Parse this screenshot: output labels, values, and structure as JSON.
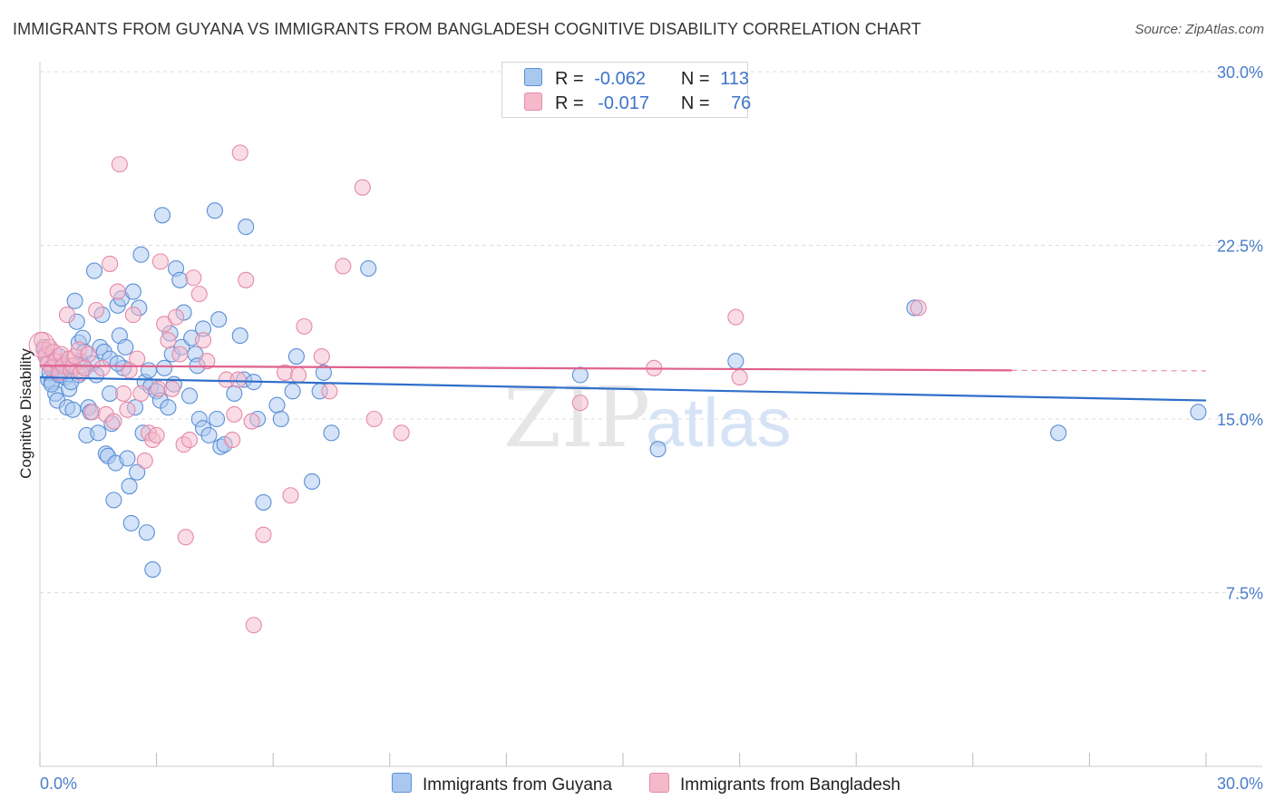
{
  "header": {
    "title": "IMMIGRANTS FROM GUYANA VS IMMIGRANTS FROM BANGLADESH COGNITIVE DISABILITY CORRELATION CHART",
    "source": "Source: ZipAtlas.com"
  },
  "legend": {
    "rows": [
      {
        "r_label": "R =",
        "r_value": "-0.062",
        "n_label": "N =",
        "n_value": "113"
      },
      {
        "r_label": "R =",
        "r_value": "-0.017",
        "n_label": "N =",
        "n_value": "76"
      }
    ]
  },
  "watermark": {
    "zip": "ZIP",
    "atlas": "atlas"
  },
  "colors": {
    "guyana_fill": "#a9c8f0",
    "guyana_stroke": "#5b8fd6",
    "guyana_line": "#2f6fcb",
    "bangladesh_fill": "#f6b9cc",
    "bangladesh_stroke": "#e48aa8",
    "bangladesh_line": "#e0608c",
    "tick_text": "#4a7cc9",
    "grid": "#dddddd"
  },
  "chart_data": {
    "type": "scatter",
    "title": "IMMIGRANTS FROM GUYANA VS IMMIGRANTS FROM BANGLADESH COGNITIVE DISABILITY CORRELATION CHART",
    "xlabel": "",
    "ylabel": "Cognitive Disability",
    "xlim": [
      0,
      30
    ],
    "ylim": [
      0,
      30
    ],
    "x_ticks": [
      "0.0%",
      "30.0%"
    ],
    "y_ticks": [
      {
        "value": 30,
        "label": "30.0%"
      },
      {
        "value": 22.5,
        "label": "22.5%"
      },
      {
        "value": 15,
        "label": "15.0%"
      },
      {
        "value": 7.5,
        "label": "7.5%"
      }
    ],
    "grid": "horizontal dashed",
    "legend_position": "top-center and bottom",
    "series": [
      {
        "name": "Immigrants from Guyana",
        "color": "#a9c8f0",
        "trend": {
          "x": [
            0,
            30
          ],
          "y": [
            16.8,
            15.8
          ]
        },
        "points": [
          [
            0.1,
            18.1
          ],
          [
            0.15,
            17.8
          ],
          [
            0.2,
            17.4
          ],
          [
            0.22,
            16.7
          ],
          [
            0.25,
            17.0
          ],
          [
            0.3,
            16.6
          ],
          [
            0.35,
            17.3
          ],
          [
            0.4,
            16.1
          ],
          [
            0.45,
            15.8
          ],
          [
            0.5,
            17.7
          ],
          [
            0.55,
            16.9
          ],
          [
            0.6,
            17.2
          ],
          [
            0.65,
            16.8
          ],
          [
            0.7,
            15.5
          ],
          [
            0.75,
            16.3
          ],
          [
            0.8,
            17.1
          ],
          [
            0.85,
            15.4
          ],
          [
            0.9,
            20.1
          ],
          [
            0.95,
            19.2
          ],
          [
            1.0,
            18.3
          ],
          [
            1.05,
            17.5
          ],
          [
            1.1,
            18.5
          ],
          [
            1.15,
            17.9
          ],
          [
            1.2,
            14.3
          ],
          [
            1.25,
            15.5
          ],
          [
            1.3,
            15.3
          ],
          [
            1.35,
            17.4
          ],
          [
            1.4,
            21.4
          ],
          [
            1.45,
            16.9
          ],
          [
            1.5,
            14.4
          ],
          [
            1.55,
            18.1
          ],
          [
            1.6,
            19.5
          ],
          [
            1.65,
            17.9
          ],
          [
            1.7,
            13.5
          ],
          [
            1.75,
            13.4
          ],
          [
            1.8,
            17.6
          ],
          [
            1.85,
            14.8
          ],
          [
            1.9,
            11.5
          ],
          [
            1.95,
            13.1
          ],
          [
            2.0,
            19.9
          ],
          [
            2.05,
            18.6
          ],
          [
            2.1,
            20.2
          ],
          [
            2.15,
            17.2
          ],
          [
            2.2,
            18.1
          ],
          [
            2.25,
            13.3
          ],
          [
            2.3,
            12.1
          ],
          [
            2.35,
            10.5
          ],
          [
            2.4,
            20.5
          ],
          [
            2.45,
            15.5
          ],
          [
            2.5,
            12.7
          ],
          [
            2.55,
            19.8
          ],
          [
            2.6,
            22.1
          ],
          [
            2.65,
            14.4
          ],
          [
            2.7,
            16.6
          ],
          [
            2.75,
            10.1
          ],
          [
            2.8,
            17.1
          ],
          [
            2.85,
            16.4
          ],
          [
            2.9,
            8.5
          ],
          [
            3.0,
            16.2
          ],
          [
            3.1,
            15.8
          ],
          [
            3.15,
            23.8
          ],
          [
            3.2,
            17.2
          ],
          [
            3.3,
            15.5
          ],
          [
            3.35,
            18.7
          ],
          [
            3.4,
            17.8
          ],
          [
            3.45,
            16.5
          ],
          [
            3.5,
            21.5
          ],
          [
            3.6,
            21.0
          ],
          [
            3.65,
            18.1
          ],
          [
            3.7,
            19.6
          ],
          [
            3.85,
            16.0
          ],
          [
            3.9,
            18.5
          ],
          [
            4.0,
            17.8
          ],
          [
            4.05,
            17.3
          ],
          [
            4.1,
            15.0
          ],
          [
            4.2,
            14.6
          ],
          [
            4.35,
            14.3
          ],
          [
            4.5,
            24.0
          ],
          [
            4.55,
            15.0
          ],
          [
            4.6,
            19.3
          ],
          [
            4.65,
            13.8
          ],
          [
            4.75,
            13.9
          ],
          [
            5.0,
            16.1
          ],
          [
            5.15,
            18.6
          ],
          [
            5.25,
            16.7
          ],
          [
            5.3,
            23.3
          ],
          [
            5.5,
            16.6
          ],
          [
            5.6,
            15.0
          ],
          [
            5.75,
            11.4
          ],
          [
            6.1,
            15.6
          ],
          [
            6.2,
            15.0
          ],
          [
            6.5,
            16.2
          ],
          [
            6.6,
            17.7
          ],
          [
            7.0,
            12.3
          ],
          [
            7.2,
            16.2
          ],
          [
            7.3,
            17.0
          ],
          [
            7.5,
            14.4
          ],
          [
            8.45,
            21.5
          ],
          [
            13.9,
            16.9
          ],
          [
            15.9,
            13.7
          ],
          [
            17.9,
            17.5
          ],
          [
            22.5,
            19.8
          ],
          [
            26.2,
            14.4
          ],
          [
            29.8,
            15.3
          ],
          [
            0.3,
            16.5
          ],
          [
            0.5,
            16.9
          ],
          [
            0.6,
            17.4
          ],
          [
            0.8,
            16.6
          ],
          [
            1.0,
            16.9
          ],
          [
            1.1,
            17.3
          ],
          [
            2.0,
            17.4
          ],
          [
            1.8,
            16.1
          ],
          [
            4.2,
            18.9
          ]
        ]
      },
      {
        "name": "Immigrants from Bangladesh",
        "color": "#f6b9cc",
        "trend": {
          "x": [
            0,
            25
          ],
          "y": [
            17.3,
            17.1
          ]
        },
        "points": [
          [
            0.05,
            18.4
          ],
          [
            0.1,
            18.0
          ],
          [
            0.15,
            17.7
          ],
          [
            0.2,
            17.4
          ],
          [
            0.25,
            18.1
          ],
          [
            0.3,
            17.2
          ],
          [
            0.35,
            17.9
          ],
          [
            0.4,
            17.5
          ],
          [
            0.5,
            17.0
          ],
          [
            0.55,
            17.8
          ],
          [
            0.6,
            17.3
          ],
          [
            0.7,
            19.5
          ],
          [
            0.75,
            17.6
          ],
          [
            0.8,
            17.1
          ],
          [
            0.85,
            17.3
          ],
          [
            0.9,
            17.7
          ],
          [
            1.0,
            18.0
          ],
          [
            1.05,
            17.0
          ],
          [
            1.15,
            17.2
          ],
          [
            1.25,
            17.8
          ],
          [
            1.35,
            15.3
          ],
          [
            1.45,
            19.7
          ],
          [
            1.6,
            17.2
          ],
          [
            1.7,
            15.2
          ],
          [
            1.8,
            21.7
          ],
          [
            1.9,
            14.9
          ],
          [
            2.0,
            20.5
          ],
          [
            2.05,
            26.0
          ],
          [
            2.15,
            16.1
          ],
          [
            2.25,
            15.4
          ],
          [
            2.4,
            19.5
          ],
          [
            2.5,
            17.6
          ],
          [
            2.6,
            16.1
          ],
          [
            2.7,
            13.2
          ],
          [
            2.8,
            14.4
          ],
          [
            2.9,
            14.1
          ],
          [
            3.0,
            14.3
          ],
          [
            3.05,
            16.3
          ],
          [
            3.1,
            21.8
          ],
          [
            3.2,
            19.1
          ],
          [
            3.3,
            18.4
          ],
          [
            3.4,
            16.3
          ],
          [
            3.5,
            19.4
          ],
          [
            3.6,
            17.8
          ],
          [
            3.7,
            13.9
          ],
          [
            3.75,
            9.9
          ],
          [
            3.85,
            14.1
          ],
          [
            3.95,
            21.1
          ],
          [
            4.1,
            20.4
          ],
          [
            4.2,
            18.4
          ],
          [
            4.3,
            17.5
          ],
          [
            4.8,
            16.7
          ],
          [
            4.95,
            14.1
          ],
          [
            5.0,
            15.2
          ],
          [
            5.1,
            16.7
          ],
          [
            5.15,
            26.5
          ],
          [
            5.3,
            21.0
          ],
          [
            5.45,
            14.9
          ],
          [
            5.5,
            6.1
          ],
          [
            5.75,
            10.0
          ],
          [
            6.3,
            17.0
          ],
          [
            6.45,
            11.7
          ],
          [
            6.65,
            16.9
          ],
          [
            6.8,
            19.0
          ],
          [
            7.25,
            17.7
          ],
          [
            7.45,
            16.2
          ],
          [
            7.8,
            21.6
          ],
          [
            8.3,
            25.0
          ],
          [
            8.6,
            15.0
          ],
          [
            9.3,
            14.4
          ],
          [
            13.9,
            15.7
          ],
          [
            15.8,
            17.2
          ],
          [
            17.9,
            19.4
          ],
          [
            18.0,
            16.8
          ],
          [
            22.6,
            19.8
          ],
          [
            2.3,
            17.1
          ]
        ]
      }
    ]
  },
  "bottom_legend": [
    {
      "label": "Immigrants from Guyana"
    },
    {
      "label": "Immigrants from Bangladesh"
    }
  ]
}
